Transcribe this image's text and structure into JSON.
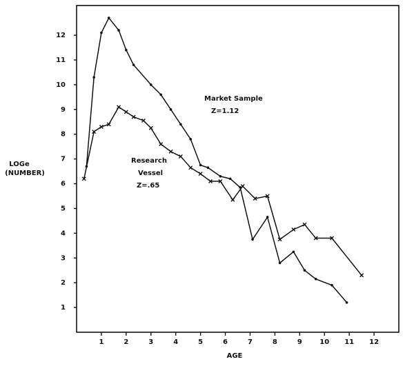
{
  "chart_data": {
    "type": "line",
    "x_label": "AGE",
    "y_label": [
      "LOGe",
      "(NUMBER)"
    ],
    "annotations": [
      "Market Sample",
      "Z=1.12",
      "Research",
      "Vessel",
      "Z=.65"
    ],
    "xlim": [
      0,
      13
    ],
    "ylim": [
      0,
      13.2
    ],
    "xticks": [
      1,
      2,
      3,
      4,
      5,
      6,
      7,
      8,
      9,
      10,
      11,
      12
    ],
    "yticks": [
      1,
      2,
      3,
      4,
      5,
      6,
      7,
      8,
      9,
      10,
      11,
      12
    ],
    "grid": false,
    "series": [
      {
        "color": "#111111",
        "marker": "dot",
        "x": [
          0.4,
          0.7,
          1.0,
          1.3,
          1.7,
          2.0,
          2.3,
          3.0,
          3.4,
          3.8,
          4.2,
          4.6,
          5.0,
          5.3,
          5.8,
          6.2,
          6.6,
          7.1,
          7.7,
          8.2,
          8.75,
          9.2,
          9.65,
          10.3,
          10.9
        ],
        "values": [
          6.7,
          10.3,
          12.1,
          12.7,
          12.2,
          11.4,
          10.8,
          10.0,
          9.6,
          9.0,
          8.4,
          7.8,
          6.75,
          6.65,
          6.3,
          6.2,
          5.85,
          3.75,
          4.65,
          2.8,
          3.25,
          2.5,
          2.15,
          1.9,
          1.2
        ]
      },
      {
        "color": "#111111",
        "marker": "x",
        "x": [
          0.3,
          0.7,
          1.0,
          1.3,
          1.7,
          2.0,
          2.3,
          2.7,
          3.0,
          3.4,
          3.8,
          4.2,
          4.6,
          5.0,
          5.4,
          5.8,
          6.3,
          6.7,
          7.2,
          7.7,
          8.2,
          8.75,
          9.2,
          9.65,
          10.3,
          11.5
        ],
        "values": [
          6.2,
          8.1,
          8.3,
          8.4,
          9.1,
          8.9,
          8.7,
          8.55,
          8.25,
          7.6,
          7.3,
          7.1,
          6.65,
          6.4,
          6.1,
          6.1,
          5.35,
          5.9,
          5.4,
          5.5,
          3.75,
          4.15,
          4.35,
          3.8,
          3.8,
          2.3
        ]
      }
    ]
  }
}
